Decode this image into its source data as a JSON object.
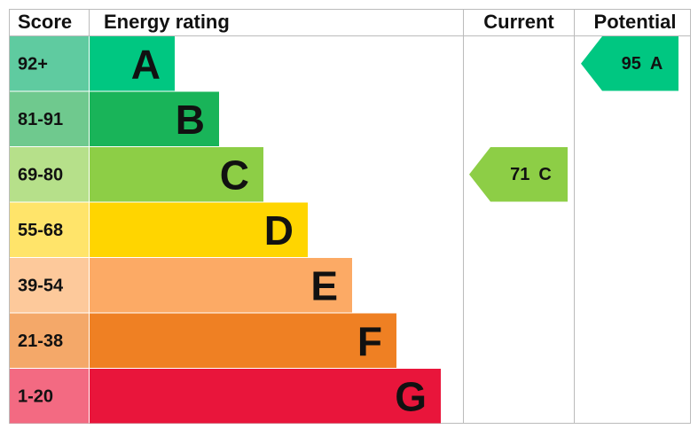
{
  "header": {
    "score": "Score",
    "rating": "Energy rating",
    "current": "Current",
    "potential": "Potential"
  },
  "bands": [
    {
      "score": "92+",
      "letter": "A",
      "color": "#00c781",
      "score_color": "#5fcba0"
    },
    {
      "score": "81-91",
      "letter": "B",
      "color": "#19b459",
      "score_color": "#6fc98e"
    },
    {
      "score": "69-80",
      "letter": "C",
      "color": "#8dce46",
      "score_color": "#b6e08a"
    },
    {
      "score": "55-68",
      "letter": "D",
      "color": "#ffd500",
      "score_color": "#ffe46a"
    },
    {
      "score": "39-54",
      "letter": "E",
      "color": "#fcaa65",
      "score_color": "#fdc99b"
    },
    {
      "score": "21-38",
      "letter": "F",
      "color": "#ef8023",
      "score_color": "#f4a869"
    },
    {
      "score": "1-20",
      "letter": "G",
      "color": "#e9153b",
      "score_color": "#f36a82"
    }
  ],
  "current": {
    "value": 71,
    "rating": "C"
  },
  "potential": {
    "value": 95,
    "rating": "A"
  }
}
